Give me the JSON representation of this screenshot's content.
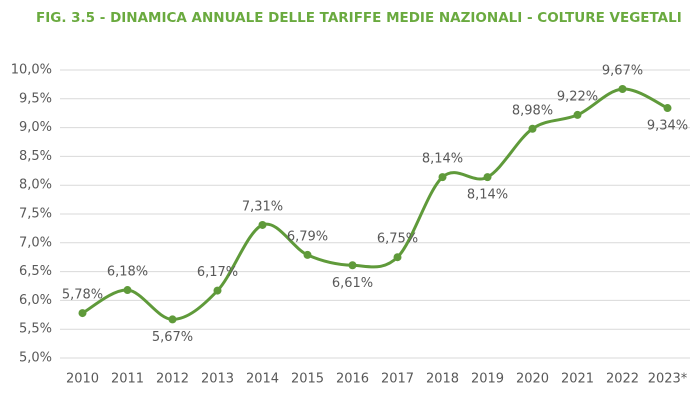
{
  "chart_data": {
    "type": "line",
    "title": "FIG. 3.5 - DINAMICA ANNUALE DELLE TARIFFE MEDIE NAZIONALI - COLTURE VEGETALI",
    "categories": [
      "2010",
      "2011",
      "2012",
      "2013",
      "2014",
      "2015",
      "2016",
      "2017",
      "2018",
      "2019",
      "2020",
      "2021",
      "2022",
      "2023*"
    ],
    "series": [
      {
        "color": "#5f9a3a",
        "values": [
          5.78,
          6.18,
          5.67,
          6.17,
          7.31,
          6.79,
          6.61,
          6.75,
          8.14,
          8.14,
          8.98,
          9.22,
          9.67,
          9.34
        ],
        "value_labels": [
          "5,78%",
          "6,18%",
          "5,67%",
          "6,17%",
          "7,31%",
          "6,79%",
          "6,61%",
          "6,75%",
          "8,14%",
          "8,14%",
          "8,98%",
          "9,22%",
          "9,67%",
          "9,34%"
        ]
      }
    ],
    "ylim": [
      5,
      10
    ],
    "yticks": [
      {
        "value": 5,
        "label": "5,0%"
      },
      {
        "value": 5.5,
        "label": "5,5%"
      },
      {
        "value": 6,
        "label": "6,0%"
      },
      {
        "value": 6.5,
        "label": "6,5%"
      },
      {
        "value": 7,
        "label": "7,0%"
      },
      {
        "value": 7.5,
        "label": "7,5%"
      },
      {
        "value": 8,
        "label": "8,0%"
      },
      {
        "value": 8.5,
        "label": "8,5%"
      },
      {
        "value": 9,
        "label": "9,0%"
      },
      {
        "value": 9.5,
        "label": "9,5%"
      },
      {
        "value": 10,
        "label": "10,0%"
      }
    ],
    "grid": true
  }
}
